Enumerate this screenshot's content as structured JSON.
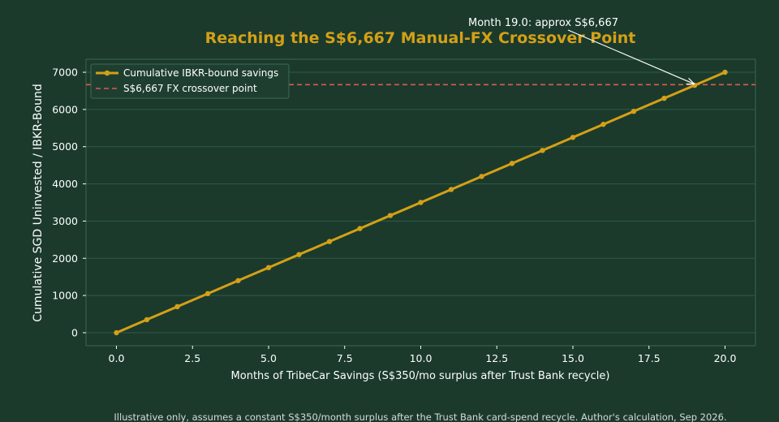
{
  "chart_data": {
    "type": "line",
    "title": "Reaching the S$6,667 Manual-FX Crossover Point",
    "xlabel": "Months of TribeCar Savings (S$350/mo surplus after Trust Bank recycle)",
    "ylabel": "Cumulative SGD Uninvested / IBKR-Bound",
    "xlim": [
      -1,
      21
    ],
    "ylim": [
      -350,
      7350
    ],
    "x_ticks": [
      0.0,
      2.5,
      5.0,
      7.5,
      10.0,
      12.5,
      15.0,
      17.5,
      20.0
    ],
    "x_tick_labels": [
      "0.0",
      "2.5",
      "5.0",
      "7.5",
      "10.0",
      "12.5",
      "15.0",
      "17.5",
      "20.0"
    ],
    "y_ticks": [
      0,
      1000,
      2000,
      3000,
      4000,
      5000,
      6000,
      7000
    ],
    "y_tick_labels": [
      "0",
      "1000",
      "2000",
      "3000",
      "4000",
      "5000",
      "6000",
      "7000"
    ],
    "grid": true,
    "legend_position": "top-left",
    "series": [
      {
        "name": "Cumulative IBKR-bound savings",
        "color": "#d4a017",
        "x": [
          0,
          1,
          2,
          3,
          4,
          5,
          6,
          7,
          8,
          9,
          10,
          11,
          12,
          13,
          14,
          15,
          16,
          17,
          18,
          19,
          20
        ],
        "y": [
          0,
          350,
          700,
          1050,
          1400,
          1750,
          2100,
          2450,
          2800,
          3150,
          3500,
          3850,
          4200,
          4550,
          4900,
          5250,
          5600,
          5950,
          6300,
          6650,
          7000
        ]
      }
    ],
    "reference_line": {
      "name": "S$6,667 FX crossover point",
      "y": 6667,
      "color": "#e05a4f",
      "style": "dashed"
    },
    "annotation": {
      "text": "Month 19.0: approx S$6,667",
      "point": [
        19.0,
        6667
      ]
    },
    "footnote": "Illustrative only, assumes a constant S$350/month surplus after the Trust Bank card-spend recycle. Author's calculation, Sep 2026."
  },
  "colors": {
    "background": "#1b3a2c",
    "title": "#d4a017",
    "grid": "#2f5a45",
    "axes": "#3a6650"
  }
}
